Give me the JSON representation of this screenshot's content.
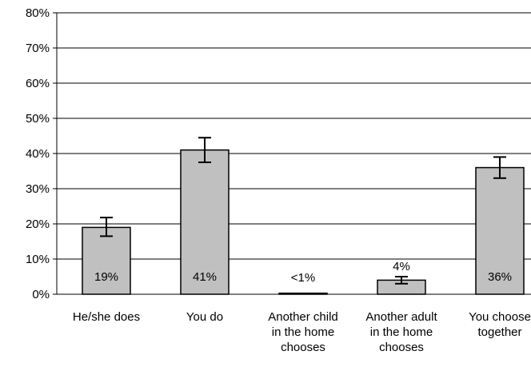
{
  "chart_data": {
    "type": "bar",
    "title": "",
    "xlabel": "",
    "ylabel": "",
    "ylim": [
      0,
      80
    ],
    "y_ticks": [
      0,
      10,
      20,
      30,
      40,
      50,
      60,
      70,
      80
    ],
    "y_tick_labels": [
      "0%",
      "10%",
      "20%",
      "30%",
      "40%",
      "50%",
      "60%",
      "70%",
      "80%"
    ],
    "grid": true,
    "legend": "none",
    "categories": [
      [
        "He/she does"
      ],
      [
        "You do"
      ],
      [
        "Another child",
        "in the home",
        "chooses"
      ],
      [
        "Another adult",
        "in the home",
        "chooses"
      ],
      [
        "You choose",
        "together"
      ]
    ],
    "values": [
      19,
      41,
      0.3,
      4,
      36
    ],
    "error_low": [
      16.5,
      37.5,
      0.3,
      3,
      33
    ],
    "error_high": [
      21.8,
      44.5,
      0.3,
      5,
      39
    ],
    "data_labels": [
      "19%",
      "41%",
      "<1%",
      "4%",
      "36%"
    ],
    "data_label_position": [
      "inside",
      "inside",
      "above",
      "above",
      "inside"
    ],
    "colors": {
      "bar_fill": "#c0c0c0",
      "bar_stroke": "#000000",
      "grid": "#000000",
      "axis": "#000000"
    }
  }
}
